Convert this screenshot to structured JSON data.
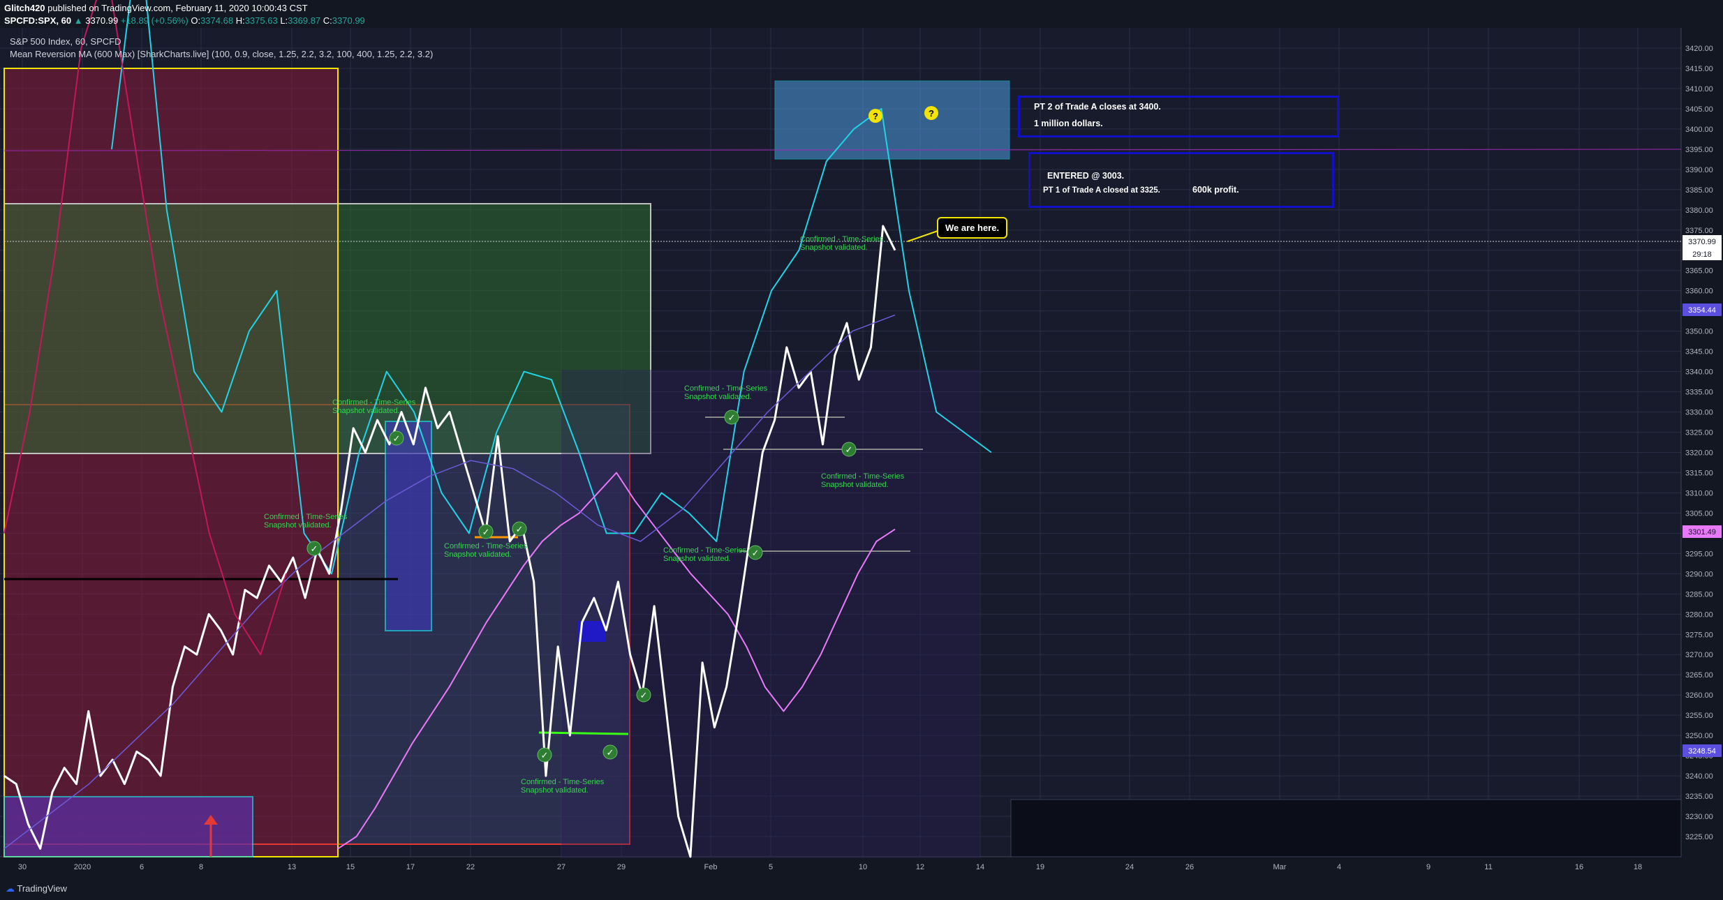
{
  "header": {
    "publisher": "Glitch420",
    "published_text": "published on TradingView.com, February 11, 2020 10:00:43 CST",
    "symbol": "SPCFD:SPX, 60",
    "last": "3370.99",
    "change": "+18.89 (+0.56%)",
    "open_label": "O:",
    "open": "3374.68",
    "high_label": "H:",
    "high": "3375.63",
    "low_label": "L:",
    "low": "3369.87",
    "close_label": "C:",
    "close": "3370.99"
  },
  "legend": {
    "title": "S&P 500 Index, 60, SPCFD",
    "indicator": "Mean Reversion MA (600 Max) [SharkCharts.live] (100, 0.9, close, 1.25, 2.2, 3.2, 100, 400, 1.25, 2.2, 3.2)"
  },
  "footer": {
    "brand": "TradingView"
  },
  "annotations": {
    "box1_line1": "PT 2 of Trade A closes at 3400.",
    "box1_line2": "1 million dollars.",
    "box2_line1": "ENTERED @ 3003.",
    "box2_line2": "PT 1 of Trade A closed at 3325.",
    "box2_line3": "600k profit.",
    "callout": "We are here.",
    "confirmed_1": "Confirmed - Time-Series Snapshot validated.",
    "confirmed_2": "Confirmed - Time-Series Snapshot validated.",
    "confirmed_3": "Confirmed - Time-Series Snapshot validated.",
    "confirmed_4": "Confirmed - Time-Series Snapshot validated.",
    "confirmed_5": "Confirmed - Time-Series Snapshot validated.",
    "confirmed_6": "Confirmed - Time-Series Snapshot validated.",
    "confirmed_7": "Confirmed - Time-Series Snapshot validated.",
    "confirmed_8": "Confirmed - Time-Series Snapshot validated.",
    "question_mark": "?"
  },
  "price_tags": {
    "last": "3370.99",
    "countdown": "29:18",
    "blue": "3354.44",
    "magenta": "3301.49",
    "blue2": "3248.54"
  },
  "colors": {
    "background": "#131722",
    "price_line": "#ffffff",
    "cyan": "#22d3e6",
    "magenta": "#e879f9",
    "purple": "#6b5bd6",
    "green_text": "#39d353",
    "annot_border": "#1010c8"
  },
  "chart_data": {
    "type": "line",
    "title": "S&P 500 Index, 60, SPCFD",
    "y_axis": {
      "min": 3220,
      "max": 3425,
      "ticks": [
        "3420.00",
        "3415.00",
        "3410.00",
        "3405.00",
        "3400.00",
        "3395.00",
        "3390.00",
        "3385.00",
        "3380.00",
        "3375.00",
        "3370.00",
        "3365.00",
        "3360.00",
        "3355.00",
        "3350.00",
        "3345.00",
        "3340.00",
        "3335.00",
        "3330.00",
        "3325.00",
        "3320.00",
        "3315.00",
        "3310.00",
        "3305.00",
        "3300.00",
        "3295.00",
        "3290.00",
        "3285.00",
        "3280.00",
        "3275.00",
        "3270.00",
        "3265.00",
        "3260.00",
        "3255.00",
        "3250.00",
        "3245.00",
        "3240.00",
        "3235.00",
        "3230.00",
        "3225.00"
      ]
    },
    "x_axis": {
      "ticks": [
        "30",
        "2020",
        "6",
        "8",
        "13",
        "15",
        "17",
        "22",
        "27",
        "29",
        "Feb",
        "5",
        "10",
        "12",
        "14",
        "19",
        "24",
        "26",
        "Mar",
        "4",
        "9",
        "11",
        "16",
        "18"
      ]
    },
    "series": [
      {
        "name": "S&P 500 Index",
        "type": "line",
        "values": [
          3240,
          3238,
          3228,
          3222,
          3236,
          3242,
          3238,
          3256,
          3240,
          3244,
          3238,
          3246,
          3244,
          3240,
          3262,
          3272,
          3270,
          3280,
          3276,
          3270,
          3286,
          3284,
          3292,
          3288,
          3294,
          3284,
          3296,
          3290,
          3306,
          3326,
          3320,
          3328,
          3322,
          3330,
          3322,
          3336,
          3326,
          3330,
          3320,
          3310,
          3300,
          3324,
          3298,
          3302,
          3288,
          3240,
          3272,
          3250,
          3278,
          3284,
          3276,
          3288,
          3270,
          3260,
          3282,
          3256,
          3230,
          3220,
          3268,
          3252,
          3262,
          3280,
          3300,
          3320,
          3328,
          3346,
          3336,
          3340,
          3322,
          3344,
          3352,
          3338,
          3346,
          3376,
          3370
        ]
      },
      {
        "name": "Upper band",
        "type": "line",
        "values": [
          3395,
          3450,
          3380,
          3340,
          3330,
          3350,
          3360,
          3300,
          3290,
          3320,
          3340,
          3330,
          3310,
          3300,
          3325,
          3340,
          3338,
          3320,
          3300,
          3300,
          3310,
          3305,
          3298,
          3340,
          3360,
          3370,
          3392,
          3400,
          3405,
          3360,
          3330,
          3325,
          3320
        ]
      },
      {
        "name": "Mean",
        "type": "line",
        "values": [
          3222,
          3225,
          3232,
          3240,
          3248,
          3255,
          3262,
          3270,
          3278,
          3285,
          3292,
          3298,
          3302,
          3305,
          3310,
          3315,
          3308,
          3302,
          3296,
          3290,
          3285,
          3280,
          3272,
          3262,
          3256,
          3262,
          3270,
          3280,
          3290,
          3298,
          3301
        ]
      }
    ],
    "grid": true,
    "legend": "top-left"
  }
}
